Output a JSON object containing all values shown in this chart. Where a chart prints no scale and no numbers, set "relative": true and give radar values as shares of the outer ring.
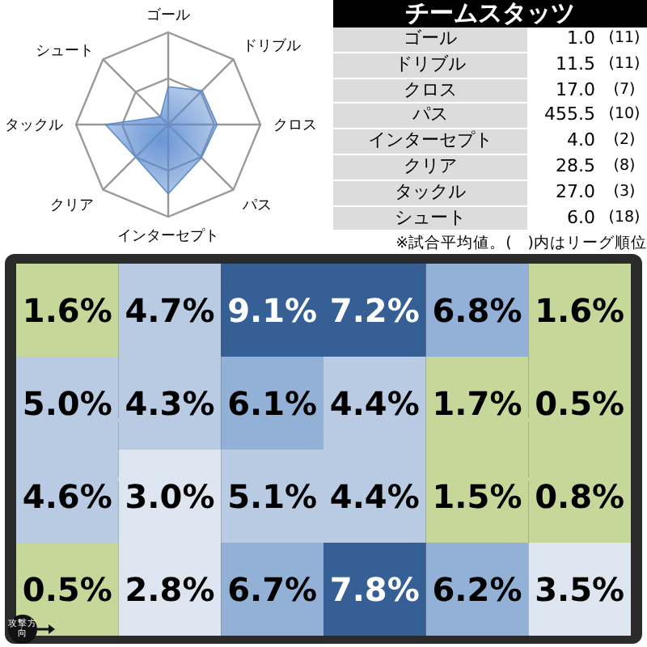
{
  "chart_data": [
    {
      "type": "radar",
      "categories": [
        "ゴール",
        "ドリブル",
        "クロス",
        "パス",
        "インターセプト",
        "クリア",
        "タックル",
        "シュート"
      ],
      "relative": true,
      "grid": true,
      "series": [
        {
          "color": "#5b8bd0",
          "values": [
            0.41,
            0.52,
            0.53,
            0.51,
            0.75,
            0.5,
            0.68,
            0.12
          ]
        }
      ]
    },
    {
      "type": "other",
      "title": "チームスタッツ",
      "categories": [
        "ゴール",
        "ドリブル",
        "クロス",
        "パス",
        "インターセプト",
        "クリア",
        "タックル",
        "シュート"
      ],
      "series": [
        {
          "values": [
            1.0,
            11.5,
            17.0,
            455.5,
            4.0,
            28.5,
            27.0,
            6.0
          ],
          "value_labels": [
            "1.0",
            "11.5",
            "17.0",
            "455.5",
            "4.0",
            "28.5",
            "27.0",
            "6.0"
          ]
        },
        {
          "values": [
            11,
            11,
            7,
            10,
            2,
            8,
            3,
            18
          ],
          "value_labels": [
            "(11)",
            "(11)",
            "(7)",
            "(10)",
            "(2)",
            "(8)",
            "(3)",
            "(18)"
          ]
        }
      ],
      "annotations": [
        "※試合平均値。(　)内はリーグ順位"
      ]
    },
    {
      "type": "heatmap",
      "categories": [
        null,
        null,
        null,
        null,
        null,
        null
      ],
      "y_categories": [
        null,
        null,
        null,
        null
      ],
      "cells": [
        [
          1.6,
          4.7,
          9.1,
          7.2,
          6.8,
          1.6
        ],
        [
          5.0,
          4.3,
          6.1,
          4.4,
          1.7,
          0.5
        ],
        [
          4.6,
          3.0,
          5.1,
          4.4,
          1.5,
          0.8
        ],
        [
          0.5,
          2.8,
          6.7,
          7.8,
          6.2,
          3.5
        ]
      ],
      "cell_labels": [
        [
          "1.6%",
          "4.7%",
          "9.1%",
          "7.2%",
          "6.8%",
          "1.6%"
        ],
        [
          "5.0%",
          "4.3%",
          "6.1%",
          "4.4%",
          "1.7%",
          "0.5%"
        ],
        [
          "4.6%",
          "3.0%",
          "5.1%",
          "4.4%",
          "1.5%",
          "0.8%"
        ],
        [
          "0.5%",
          "2.8%",
          "6.7%",
          "7.8%",
          "6.2%",
          "3.5%"
        ]
      ],
      "annotations": [
        "攻撃方向"
      ]
    }
  ]
}
